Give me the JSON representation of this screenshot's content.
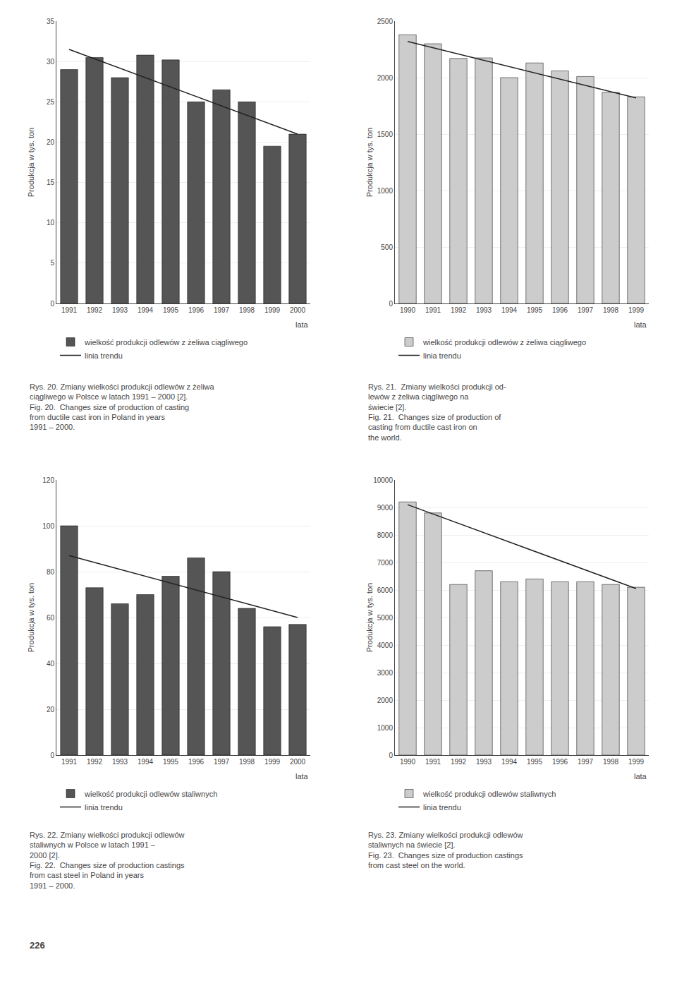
{
  "chart_data": [
    {
      "type": "bar",
      "categories": [
        "1991",
        "1992",
        "1993",
        "1994",
        "1995",
        "1996",
        "1997",
        "1998",
        "1999",
        "2000"
      ],
      "series": [
        {
          "name": "wielkość produkcji odlewów z żeliwa ciągliwego",
          "type": "bar",
          "color": "#555555",
          "values": [
            29,
            30.5,
            28,
            30.8,
            30.2,
            25,
            26.5,
            25,
            19.5,
            21
          ]
        },
        {
          "name": "linia trendu",
          "type": "line",
          "color": "#222222",
          "line_style": "solid",
          "x": [
            "1991",
            "2000"
          ],
          "values": [
            31.5,
            21.0
          ]
        }
      ],
      "ylabel": "Produkcja w tys. ton",
      "xlabel": "lata",
      "ylim": [
        0,
        35
      ],
      "yticks": [
        0,
        5,
        10,
        15,
        20,
        25,
        30,
        35
      ],
      "grid": true,
      "legend": "lower left",
      "annotations": [
        "Rys. 20. Zmiany wielkości produkcji odlewów z żeliwa ciągliwego w Polsce w latach 1991 – 2000 [2].",
        "Fig. 20.  Changes size of production of casting\nfrom ductile cast iron in Poland in years\n1991 – 2000."
      ]
    },
    {
      "type": "bar",
      "categories": [
        "1990",
        "1991",
        "1992",
        "1993",
        "1994",
        "1995",
        "1996",
        "1997",
        "1998",
        "1999"
      ],
      "series": [
        {
          "name": "wielkość produkcji odlewów z żeliwa ciągliwego",
          "type": "bar",
          "color": "#cccccc",
          "values": [
            2380,
            2300,
            2170,
            2175,
            2000,
            2130,
            2060,
            2010,
            1870,
            1830
          ]
        },
        {
          "name": "linia trendu",
          "type": "line",
          "color": "#222222",
          "line_style": "solid",
          "x": [
            "1990",
            "1999"
          ],
          "values": [
            2320,
            1820
          ]
        }
      ],
      "ylabel": "Produkcja w tys. ton",
      "xlabel": "lata",
      "ylim": [
        0,
        2500
      ],
      "yticks": [
        0,
        500,
        1000,
        1500,
        2000,
        2500
      ],
      "grid": true,
      "legend": "lower left",
      "annotations": [
        "Rys. 21.  Zmiany wielkości produkcji od-\nlewów z żeliwa ciągliwego na\nświecie [2].",
        "Fig. 21.  Changes size of production of\ncasting from ductile cast iron on\nthe world."
      ]
    },
    {
      "type": "bar",
      "categories": [
        "1991",
        "1992",
        "1993",
        "1994",
        "1995",
        "1996",
        "1997",
        "1998",
        "1999",
        "2000"
      ],
      "series": [
        {
          "name": "wielkość produkcji odlewów staliwnych",
          "type": "bar",
          "color": "#555555",
          "values": [
            100,
            73,
            66,
            70,
            78,
            86,
            80,
            64,
            56,
            57
          ]
        },
        {
          "name": "linia trendu",
          "type": "line",
          "color": "#222222",
          "line_style": "solid",
          "x": [
            "1991",
            "2000"
          ],
          "values": [
            87,
            60
          ]
        }
      ],
      "ylabel": "Produkcja w tys. ton",
      "xlabel": "lata",
      "ylim": [
        0,
        120
      ],
      "yticks": [
        0,
        20,
        40,
        60,
        80,
        100,
        120
      ],
      "grid": true,
      "legend": "lower left",
      "annotations": [
        "Rys. 22. Zmiany wielkości produkcji odlewów\nstaliwnych w Polsce w latach 1991 –\n2000 [2].",
        "Fig. 22.  Changes size of production castings\nfrom cast steel in Poland in years\n1991 – 2000."
      ]
    },
    {
      "type": "bar",
      "categories": [
        "1990",
        "1991",
        "1992",
        "1993",
        "1994",
        "1995",
        "1996",
        "1997",
        "1998",
        "1999"
      ],
      "series": [
        {
          "name": "wielkość produkcji odlewów staliwnych",
          "type": "bar",
          "color": "#cccccc",
          "values": [
            9200,
            8800,
            6200,
            6700,
            6300,
            6400,
            6300,
            6300,
            6200,
            6100
          ]
        },
        {
          "name": "linia trendu",
          "type": "line",
          "color": "#222222",
          "line_style": "solid",
          "x": [
            "1990",
            "1999"
          ],
          "values": [
            9100,
            6050
          ]
        }
      ],
      "ylabel": "Produkcja w tys. ton",
      "xlabel": "lata",
      "ylim": [
        0,
        10000
      ],
      "yticks": [
        0,
        1000,
        2000,
        3000,
        4000,
        5000,
        6000,
        7000,
        8000,
        9000,
        10000
      ],
      "grid": true,
      "legend": "lower left",
      "annotations": [
        "Rys. 23. Zmiany wielkości produkcji odlewów\nstaliwnych na świecie [2].",
        "Fig. 23.  Changes size of production castings\nfrom cast steel on the world."
      ]
    }
  ],
  "annotations": [
    "226"
  ]
}
